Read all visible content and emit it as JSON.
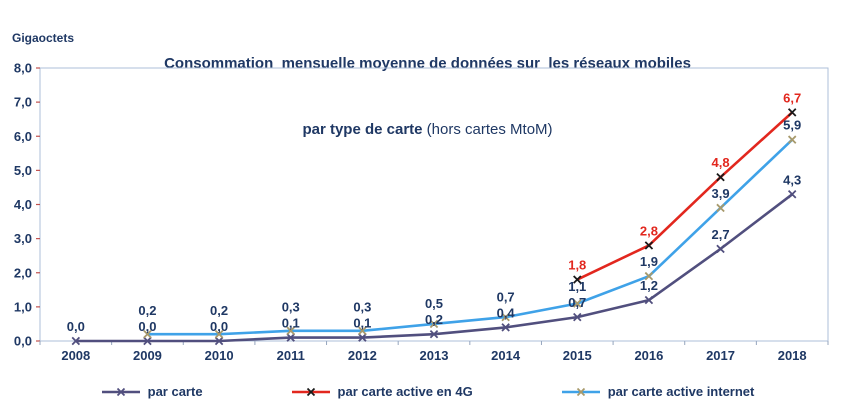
{
  "title": {
    "line1": "Consommation  mensuelle moyenne de données sur  les réseaux mobiles",
    "line2_bold": "par type de carte",
    "line2_rest": " (hors cartes MtoM)"
  },
  "y_axis_title": "Gigaoctets",
  "colors": {
    "title_text": "#1F3864",
    "axis_text": "#1F3864",
    "frame": "#AEBFD8",
    "y_tick": "#C0504D",
    "x_tick": "#95A5BE"
  },
  "chart_data": {
    "type": "line",
    "title": "Consommation mensuelle moyenne de données sur les réseaux mobiles par type de carte (hors cartes MtoM)",
    "xlabel": "",
    "ylabel": "Gigaoctets",
    "categories": [
      "2008",
      "2009",
      "2010",
      "2011",
      "2012",
      "2013",
      "2014",
      "2015",
      "2016",
      "2017",
      "2018"
    ],
    "ylim": [
      0,
      8
    ],
    "yticks": [
      "0,0",
      "1,0",
      "2,0",
      "3,0",
      "4,0",
      "5,0",
      "6,0",
      "7,0",
      "8,0"
    ],
    "grid": false,
    "legend_position": "bottom",
    "frame_color": "#AEBFD8",
    "tick_color_y": "#C0504D",
    "tick_color_x": "#95A5BE",
    "series": [
      {
        "name": "par carte",
        "line_color": "#514F7E",
        "marker_color": "#514F7E",
        "label_color": "#1F3864",
        "values": [
          0.0,
          0.0,
          0.0,
          0.1,
          0.1,
          0.2,
          0.4,
          0.7,
          1.2,
          2.7,
          4.3
        ]
      },
      {
        "name": "par carte active en 4G",
        "line_color": "#E2271E",
        "marker_color": "#1A1A1A",
        "label_color": "#E2271E",
        "values": [
          null,
          null,
          null,
          null,
          null,
          null,
          null,
          1.8,
          2.8,
          4.8,
          6.7
        ]
      },
      {
        "name": "par carte active internet",
        "line_color": "#3FA2E8",
        "marker_color": "#A89A6C",
        "label_color": "#1F3864",
        "values": [
          null,
          0.2,
          0.2,
          0.3,
          0.3,
          0.5,
          0.7,
          1.1,
          1.9,
          3.9,
          5.9
        ]
      }
    ]
  }
}
